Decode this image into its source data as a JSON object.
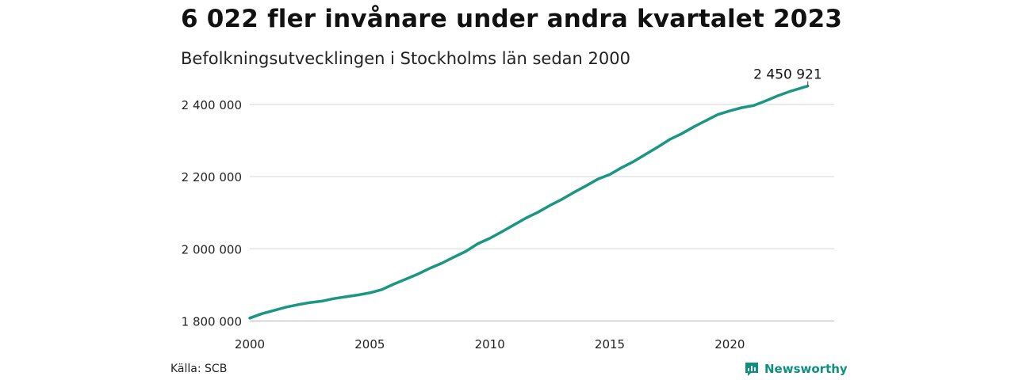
{
  "title": "6 022 fler invånare under andra kvartalet 2023",
  "subtitle": "Befolkningsutvecklingen i Stockholms län sedan 2000",
  "source": "Källa: SCB",
  "brand": {
    "name": "Newsworthy",
    "color": "#0f8f7e",
    "icon": "newsworthy-logo-icon"
  },
  "colors": {
    "line": "#1a9683",
    "grid": "#dddddd",
    "axis": "#bbbbbb"
  },
  "chart_data": {
    "type": "line",
    "title": "6 022 fler invånare under andra kvartalet 2023",
    "subtitle": "Befolkningsutvecklingen i Stockholms län sedan 2000",
    "xlabel": "",
    "ylabel": "",
    "xlim": [
      2000,
      2023.5
    ],
    "ylim": [
      1790000,
      2470000
    ],
    "grid": true,
    "legend": "none",
    "x_ticks": [
      2000,
      2005,
      2010,
      2015,
      2020
    ],
    "x_tick_labels": [
      "2000",
      "2005",
      "2010",
      "2015",
      "2020"
    ],
    "y_ticks": [
      1800000,
      2000000,
      2200000,
      2400000
    ],
    "y_tick_labels": [
      "1 800 000",
      "2 000 000",
      "2 200 000",
      "2 400 000"
    ],
    "end_label": "2 450 921",
    "series": [
      {
        "x": [
          2000,
          2000.5,
          2001,
          2001.5,
          2002,
          2002.5,
          2003,
          2003.5,
          2004,
          2004.5,
          2005,
          2005.5,
          2006,
          2006.5,
          2007,
          2007.5,
          2008,
          2008.5,
          2009,
          2009.5,
          2010,
          2010.5,
          2011,
          2011.5,
          2012,
          2012.5,
          2013,
          2013.5,
          2014,
          2014.5,
          2015,
          2015.5,
          2016,
          2016.5,
          2017,
          2017.5,
          2018,
          2018.5,
          2019,
          2019.5,
          2020,
          2020.5,
          2021,
          2021.5,
          2022,
          2022.5,
          2023,
          2023.25
        ],
        "values": [
          1808000,
          1820000,
          1829000,
          1838000,
          1845000,
          1851000,
          1855000,
          1862000,
          1867000,
          1872000,
          1878000,
          1887000,
          1902000,
          1916000,
          1930000,
          1946000,
          1960000,
          1977000,
          1993000,
          2014000,
          2029000,
          2047000,
          2066000,
          2085000,
          2101000,
          2120000,
          2137000,
          2156000,
          2174000,
          2193000,
          2206000,
          2225000,
          2242000,
          2262000,
          2282000,
          2303000,
          2319000,
          2338000,
          2355000,
          2372000,
          2382000,
          2391000,
          2397000,
          2410000,
          2424000,
          2436000,
          2446000,
          2450921
        ]
      }
    ]
  }
}
